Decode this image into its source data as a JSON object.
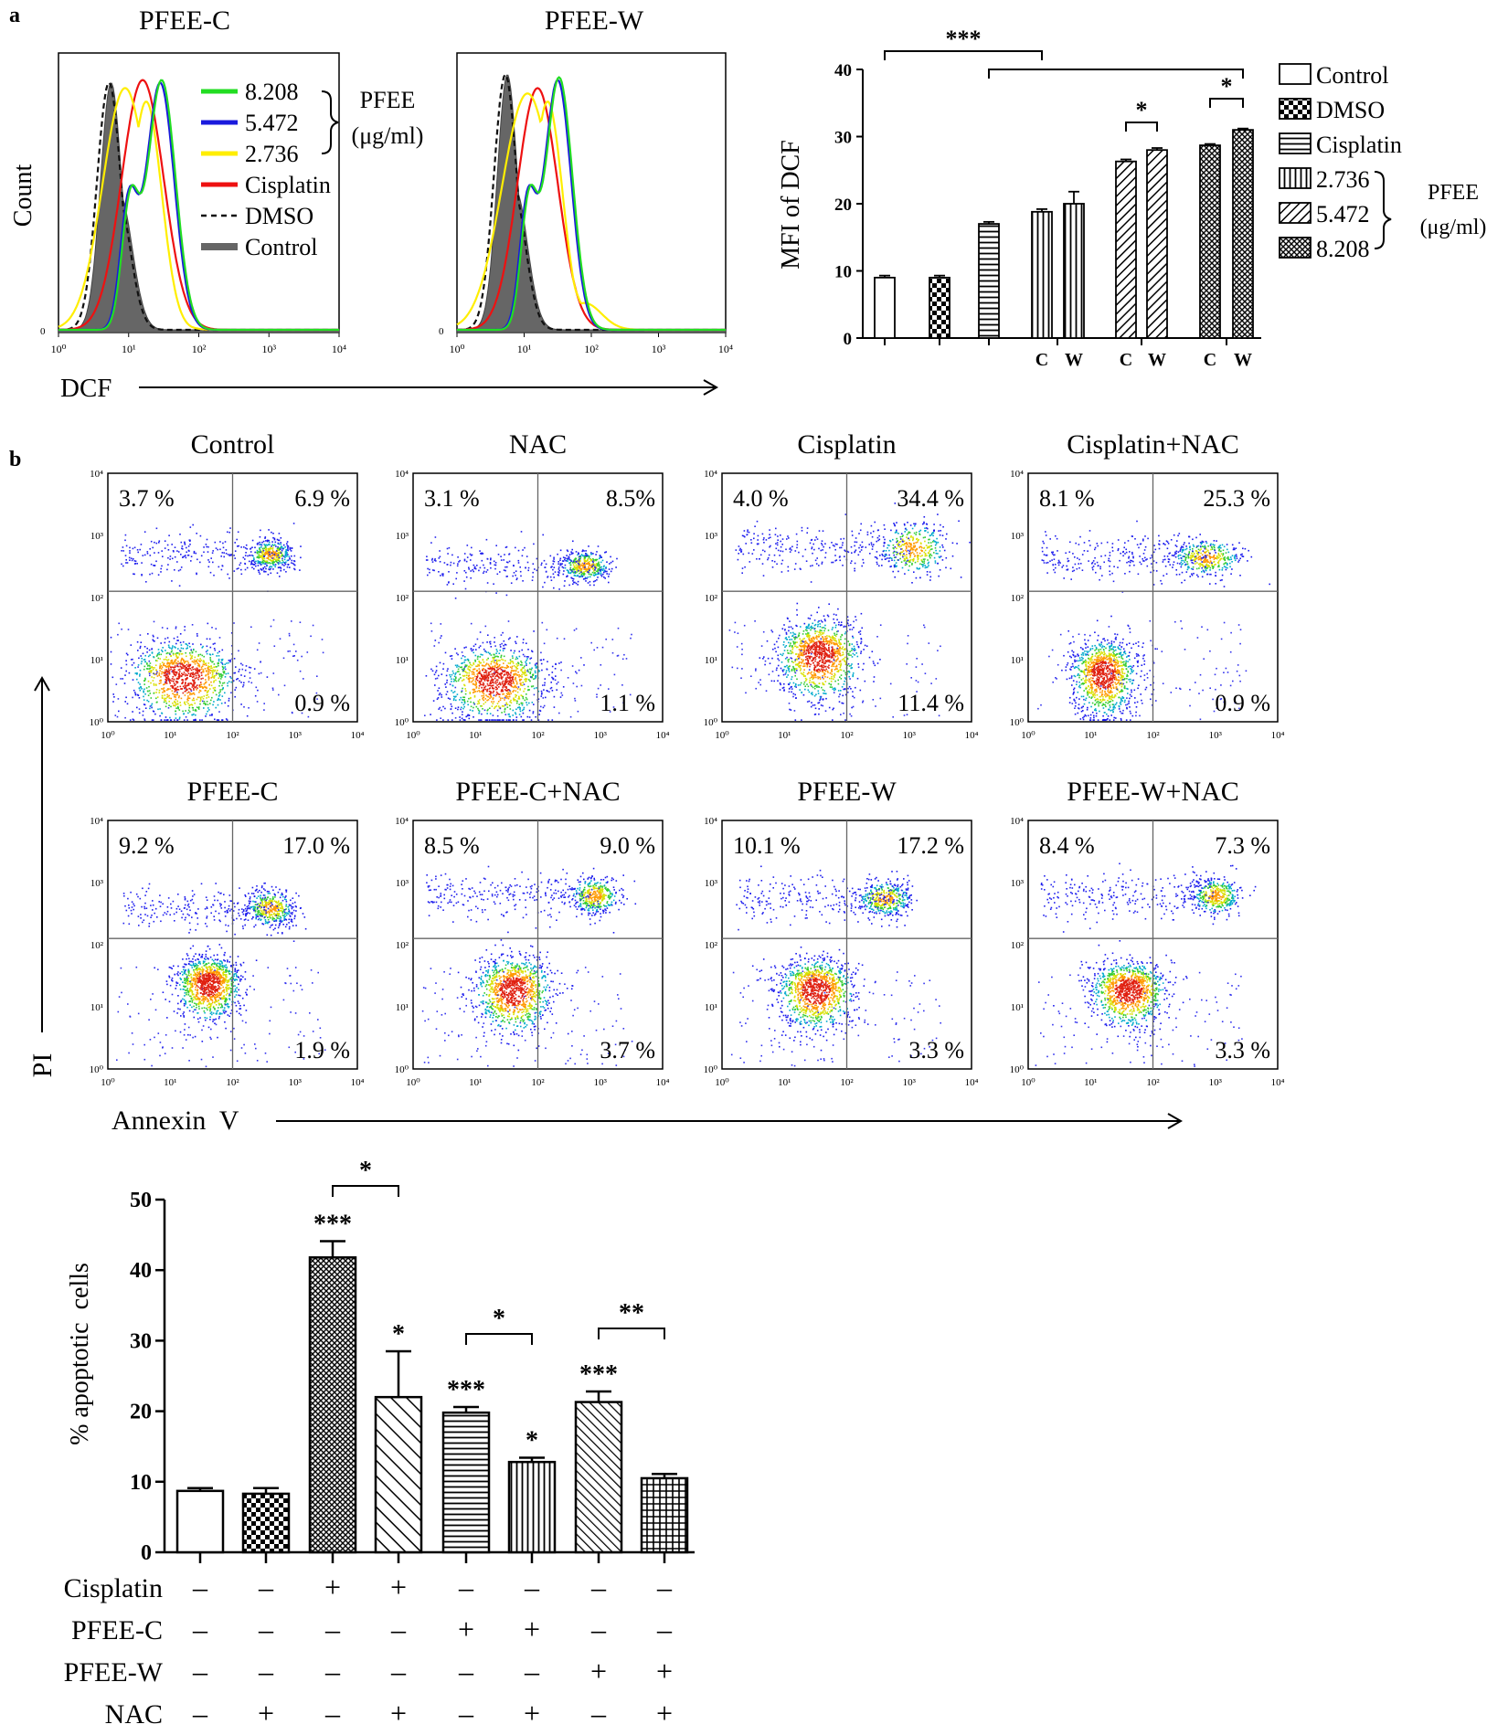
{
  "panel_labels": {
    "a": "a",
    "b": "b"
  },
  "histograms": {
    "titles": [
      "PFEE-C",
      "PFEE-W"
    ],
    "y_axis_label": "Count",
    "x_axis_label": "DCF",
    "x_ticks": [
      "10⁰",
      "10¹",
      "10²",
      "10³",
      "10⁴"
    ],
    "y_zero": "0",
    "legend": [
      {
        "label": "8.208",
        "color": "#22dd22",
        "dash": false
      },
      {
        "label": "5.472",
        "color": "#1a1add",
        "dash": false
      },
      {
        "label": "2.736",
        "color": "#ffee00",
        "dash": false
      },
      {
        "label": "Cisplatin",
        "color": "#ee1111",
        "dash": false
      },
      {
        "label": "DMSO",
        "color": "#111111",
        "dash": true
      },
      {
        "label": "Control",
        "color": "#666666",
        "dash": false
      }
    ],
    "legend_group": {
      "line1": "PFEE",
      "line2": "(μg/ml)"
    }
  },
  "chart_data": [
    {
      "type": "histogram",
      "title": "PFEE-C",
      "xlabel": "DCF",
      "ylabel": "Count",
      "x_scale": "log",
      "xlim": [
        1,
        10000
      ],
      "series": [
        {
          "name": "Control",
          "fill": true,
          "color": "#666666",
          "peak_log": 0.75,
          "width": 0.15,
          "height": 0.92
        },
        {
          "name": "DMSO",
          "color": "#111111",
          "dash": true,
          "peak_log": 0.72,
          "width": 0.17,
          "height": 0.92
        },
        {
          "name": "Cisplatin",
          "color": "#ee1111",
          "peak_log": 1.2,
          "width": 0.3,
          "height": 0.93
        },
        {
          "name": "2.736",
          "color": "#ffee00",
          "peak_log": 0.95,
          "width": 0.32,
          "height": 0.9
        },
        {
          "name": "5.472",
          "color": "#1a1add",
          "peak_log": 1.45,
          "width": 0.2,
          "height": 0.92
        },
        {
          "name": "8.208",
          "color": "#22dd22",
          "peak_log": 1.47,
          "width": 0.2,
          "height": 0.93
        }
      ]
    },
    {
      "type": "histogram",
      "title": "PFEE-W",
      "xlabel": "DCF",
      "ylabel": "Count",
      "x_scale": "log",
      "xlim": [
        1,
        10000
      ],
      "series": [
        {
          "name": "Control",
          "fill": true,
          "color": "#666666",
          "peak_log": 0.75,
          "width": 0.15,
          "height": 0.95
        },
        {
          "name": "DMSO",
          "color": "#111111",
          "dash": true,
          "peak_log": 0.72,
          "width": 0.17,
          "height": 0.95
        },
        {
          "name": "Cisplatin",
          "color": "#ee1111",
          "peak_log": 1.2,
          "width": 0.3,
          "height": 0.9
        },
        {
          "name": "2.736",
          "color": "#ffee00",
          "peak_log": 1.05,
          "width": 0.38,
          "height": 0.88
        },
        {
          "name": "5.472",
          "color": "#1a1add",
          "peak_log": 1.5,
          "width": 0.2,
          "height": 0.93
        },
        {
          "name": "8.208",
          "color": "#22dd22",
          "peak_log": 1.52,
          "width": 0.2,
          "height": 0.94
        }
      ]
    },
    {
      "type": "bar",
      "ylabel": "MFI of DCF",
      "ylim": [
        0,
        40
      ],
      "yticks": [
        0,
        10,
        20,
        30,
        40
      ],
      "legend": [
        {
          "label": "Control",
          "pattern": "white"
        },
        {
          "label": "DMSO",
          "pattern": "checker"
        },
        {
          "label": "Cisplatin",
          "pattern": "hlines"
        },
        {
          "label": "2.736",
          "pattern": "vlines"
        },
        {
          "label": "5.472",
          "pattern": "diag"
        },
        {
          "label": "8.208",
          "pattern": "crossdiag"
        }
      ],
      "legend_group": {
        "line1": "PFEE",
        "line2": "(μg/ml)"
      },
      "bars": [
        {
          "group": "Control",
          "label": "",
          "value": 9.0,
          "error": 0.3,
          "pattern": "white"
        },
        {
          "group": "DMSO",
          "label": "",
          "value": 9.0,
          "error": 0.3,
          "pattern": "checker"
        },
        {
          "group": "Cisplatin",
          "label": "",
          "value": 17.0,
          "error": 0.3,
          "pattern": "hlines"
        },
        {
          "group": "2.736",
          "label": "C",
          "value": 18.8,
          "error": 0.4,
          "pattern": "vlines"
        },
        {
          "group": "2.736",
          "label": "W",
          "value": 20.0,
          "error": 1.8,
          "pattern": "vlines"
        },
        {
          "group": "5.472",
          "label": "C",
          "value": 26.3,
          "error": 0.3,
          "pattern": "diag"
        },
        {
          "group": "5.472",
          "label": "W",
          "value": 28.0,
          "error": 0.3,
          "pattern": "diag"
        },
        {
          "group": "8.208",
          "label": "C",
          "value": 28.7,
          "error": 0.2,
          "pattern": "crossdiag"
        },
        {
          "group": "8.208",
          "label": "W",
          "value": 31.0,
          "error": 0.2,
          "pattern": "crossdiag"
        }
      ],
      "significance": [
        {
          "from": 0,
          "to": 3,
          "label": "***"
        },
        {
          "from": 2,
          "to": 8,
          "label": ""
        },
        {
          "from": 5,
          "to": 6,
          "label": "*"
        },
        {
          "from": 7,
          "to": 8,
          "label": "*"
        }
      ]
    },
    {
      "type": "scatter",
      "subtype": "flow-cytometry-quadrant",
      "xlabel": "Annexin  V",
      "ylabel": "PI",
      "x_scale": "log",
      "y_scale": "log",
      "xlim": [
        1,
        10000
      ],
      "ylim": [
        1,
        10000
      ],
      "tick_labels": [
        "10⁰",
        "10¹",
        "10²",
        "10³",
        "10⁴"
      ],
      "plots": [
        {
          "title": "Control",
          "ul": "3.7  %",
          "ur": "6.9  %",
          "lr": "0.9  %",
          "main": [
            1.2,
            0.75,
            0.42,
            0.32
          ],
          "apop": [
            2.6,
            2.7,
            0.18,
            0.12
          ]
        },
        {
          "title": "NAC",
          "ul": "3.1  %",
          "ur": "8.5%",
          "lr": "1.1  %",
          "main": [
            1.3,
            0.7,
            0.4,
            0.3
          ],
          "apop": [
            2.75,
            2.52,
            0.2,
            0.12
          ]
        },
        {
          "title": "Cisplatin",
          "ul": "4.0   %",
          "ur": "34.4  %",
          "lr": "11.4  %",
          "main": [
            1.55,
            1.1,
            0.33,
            0.32
          ],
          "apop": [
            3.05,
            2.8,
            0.28,
            0.22
          ]
        },
        {
          "title": "Cisplatin+NAC",
          "ul": "8.1  %",
          "ur": "25.3  %",
          "lr": "0.9  %",
          "main": [
            1.2,
            0.8,
            0.25,
            0.3
          ],
          "apop": [
            2.85,
            2.65,
            0.28,
            0.15
          ]
        },
        {
          "title": "PFEE-C",
          "ul": "9.2  %",
          "ur": "17.0  %",
          "lr": "1.9  %",
          "main": [
            1.6,
            1.4,
            0.25,
            0.25
          ],
          "apop": [
            2.6,
            2.6,
            0.2,
            0.15
          ]
        },
        {
          "title": "PFEE-C+NAC",
          "ul": "8.5  %",
          "ur": "9.0  %",
          "lr": "3.7  %",
          "main": [
            1.6,
            1.3,
            0.3,
            0.3
          ],
          "apop": [
            2.9,
            2.8,
            0.2,
            0.15
          ]
        },
        {
          "title": "PFEE-W",
          "ul": "10.1  %",
          "ur": "17.2  %",
          "lr": "3.3  %",
          "main": [
            1.5,
            1.3,
            0.3,
            0.28
          ],
          "apop": [
            2.6,
            2.75,
            0.22,
            0.14
          ]
        },
        {
          "title": "PFEE-W+NAC",
          "ul": "8.4  %",
          "ur": "7.3  %",
          "lr": "3.3  %",
          "main": [
            1.6,
            1.3,
            0.3,
            0.26
          ],
          "apop": [
            3.0,
            2.8,
            0.2,
            0.15
          ]
        }
      ]
    },
    {
      "type": "bar",
      "ylabel": "% apoptotic  cells",
      "ylim": [
        0,
        50
      ],
      "yticks": [
        0,
        10,
        20,
        30,
        40,
        50
      ],
      "bars": [
        {
          "value": 8.7,
          "error": 0.4,
          "pattern": "white",
          "star": ""
        },
        {
          "value": 8.3,
          "error": 0.8,
          "pattern": "checker",
          "star": ""
        },
        {
          "value": 41.8,
          "error": 2.3,
          "pattern": "crossdiag",
          "star": "***"
        },
        {
          "value": 22.0,
          "error": 6.5,
          "pattern": "backdiag",
          "star": "*"
        },
        {
          "value": 19.8,
          "error": 0.8,
          "pattern": "hlines",
          "star": "***"
        },
        {
          "value": 12.8,
          "error": 0.6,
          "pattern": "vlines",
          "star": "*"
        },
        {
          "value": 21.3,
          "error": 1.5,
          "pattern": "backdiag_dense",
          "star": "***"
        },
        {
          "value": 10.5,
          "error": 0.6,
          "pattern": "grid",
          "star": ""
        }
      ],
      "significance": [
        {
          "from": 2,
          "to": 3,
          "label": "*"
        },
        {
          "from": 4,
          "to": 5,
          "label": "*"
        },
        {
          "from": 6,
          "to": 7,
          "label": "**"
        }
      ],
      "conditions": [
        {
          "name": "Cisplatin",
          "values": [
            "–",
            "–",
            "+",
            "+",
            "–",
            "–",
            "–",
            "–"
          ]
        },
        {
          "name": "PFEE-C",
          "values": [
            "–",
            "–",
            "–",
            "–",
            "+",
            "+",
            "–",
            "–"
          ]
        },
        {
          "name": "PFEE-W",
          "values": [
            "–",
            "–",
            "–",
            "–",
            "–",
            "–",
            "+",
            "+"
          ]
        },
        {
          "name": "NAC",
          "values": [
            "–",
            "+",
            "–",
            "+",
            "–",
            "+",
            "–",
            "+"
          ]
        }
      ]
    }
  ]
}
